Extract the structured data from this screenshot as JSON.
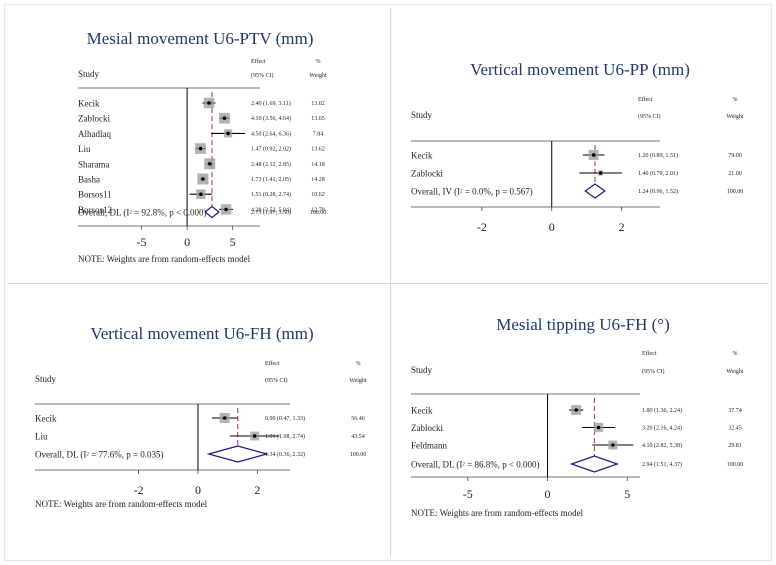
{
  "colors": {
    "title": "#1f3868",
    "text": "#222222",
    "marker": "#000000",
    "box": "#9a9a9a",
    "diamond": "#1a1a7a",
    "dashed": "#b03030",
    "panel_bg": "#ffffff"
  },
  "chart_data": [
    {
      "type": "forest",
      "title": "Mesial movement U6-PTV (mm)",
      "header": {
        "study": "Study",
        "effect": "Effect",
        "ci": "(95% CI)",
        "pct": "%",
        "weight": "Weight"
      },
      "studies": [
        {
          "name": "Kecik",
          "est": 2.4,
          "lo": 1.69,
          "hi": 3.11,
          "label": "2.40 (1.69, 3.11)",
          "weight": "13.02"
        },
        {
          "name": "Zablocki",
          "est": 4.1,
          "lo": 3.56,
          "hi": 4.64,
          "label": "4.10 (3.56, 4.64)",
          "weight": "13.65"
        },
        {
          "name": "Alhadlaq",
          "est": 4.5,
          "lo": 2.64,
          "hi": 6.36,
          "label": "4.50 (2.64, 6.36)",
          "weight": "7.84"
        },
        {
          "name": "Liu",
          "est": 1.47,
          "lo": 0.92,
          "hi": 2.02,
          "label": "1.47 (0.92, 2.02)",
          "weight": "13.62"
        },
        {
          "name": "Sharama",
          "est": 2.48,
          "lo": 2.12,
          "hi": 2.85,
          "label": "2.48 (2.12, 2.85)",
          "weight": "14.18"
        },
        {
          "name": "Basha",
          "est": 1.73,
          "lo": 1.41,
          "hi": 2.05,
          "label": "1.73 (1.41, 2.05)",
          "weight": "14.28"
        },
        {
          "name": "Borsos11",
          "est": 1.51,
          "lo": 0.28,
          "hi": 2.74,
          "label": "1.51 (0.28, 2.74)",
          "weight": "10.62"
        },
        {
          "name": "Borsos12",
          "est": 4.28,
          "lo": 3.52,
          "hi": 5.04,
          "label": "4.28 (3.52, 5.04)",
          "weight": "12.79"
        }
      ],
      "overall": {
        "name_pre": "Overall, DL (I",
        "sup": "2",
        "name_post": " = 92.8%, p < 0.000)",
        "est": 2.73,
        "lo": 1.97,
        "hi": 3.5,
        "label": "2.73 (1.97, 3.50)",
        "weight": "100.00"
      },
      "xlim": [
        -10,
        8
      ],
      "ticks": [
        -5,
        0,
        5
      ],
      "note": "NOTE: Weights are from random-effects model"
    },
    {
      "type": "forest",
      "title": "Vertical movement U6-PP (mm)",
      "header": {
        "study": "Study",
        "effect": "Effect",
        "ci": "(95% CI)",
        "pct": "%",
        "weight": "Weight"
      },
      "studies": [
        {
          "name": "Kecik",
          "est": 1.2,
          "lo": 0.89,
          "hi": 1.51,
          "label": "1.20 (0.89, 1.51)",
          "weight": "79.00"
        },
        {
          "name": "Zablocki",
          "est": 1.4,
          "lo": 0.79,
          "hi": 2.01,
          "label": "1.40 (0.79, 2.01)",
          "weight": "21.00"
        }
      ],
      "overall": {
        "name_pre": "Overall, IV (I",
        "sup": "2",
        "name_post": " = 0.0%, p = 0.567)",
        "est": 1.24,
        "lo": 0.96,
        "hi": 1.52,
        "label": "1.24 (0.96, 1.52)",
        "weight": "100.00"
      },
      "xlim": [
        -3.6,
        3.1
      ],
      "ticks": [
        -2,
        0,
        2
      ],
      "note": ""
    },
    {
      "type": "forest",
      "title": "Vertical movement U6-FH (mm)",
      "header": {
        "study": "Study",
        "effect": "Effect",
        "ci": "(95% CI)",
        "pct": "%",
        "weight": "Weight"
      },
      "studies": [
        {
          "name": "Kecik",
          "est": 0.9,
          "lo": 0.47,
          "hi": 1.33,
          "label": "0.90 (0.47, 1.33)",
          "weight": "56.46"
        },
        {
          "name": "Liu",
          "est": 1.91,
          "lo": 1.08,
          "hi": 2.74,
          "label": "1.91 (1.08, 2.74)",
          "weight": "43.54"
        }
      ],
      "overall": {
        "name_pre": "Overall, DL (I",
        "sup": "2",
        "name_post": " = 77.6%, p = 0.035)",
        "est": 1.34,
        "lo": 0.36,
        "hi": 2.32,
        "label": "1.34 (0.36, 2.32)",
        "weight": "100.00"
      },
      "xlim": [
        -3.3,
        3.1
      ],
      "ticks": [
        -2,
        0,
        2
      ],
      "note": "NOTE: Weights are from random-effects model"
    },
    {
      "type": "forest",
      "title": "Mesial tipping U6-FH (°)",
      "header": {
        "study": "Study",
        "effect": "Effect",
        "ci": "(95% CI)",
        "pct": "%",
        "weight": "Weight"
      },
      "studies": [
        {
          "name": "Kecik",
          "est": 1.8,
          "lo": 1.36,
          "hi": 2.24,
          "label": "1.80 (1.36, 2.24)",
          "weight": "37.74"
        },
        {
          "name": "Zablocki",
          "est": 3.2,
          "lo": 2.16,
          "hi": 4.24,
          "label": "3.20 (2.16, 4.24)",
          "weight": "32.45"
        },
        {
          "name": "Feldmann",
          "est": 4.1,
          "lo": 2.82,
          "hi": 5.38,
          "label": "4.10 (2.82, 5.38)",
          "weight": "29.81"
        }
      ],
      "overall": {
        "name_pre": "Overall, DL (I",
        "sup": "2",
        "name_post": " = 86.8%, p < 0.000)",
        "est": 2.94,
        "lo": 1.51,
        "hi": 4.37,
        "label": "2.94 (1.51, 4.37)",
        "weight": "100.00"
      },
      "xlim": [
        -8.5,
        5.8
      ],
      "ticks": [
        -5,
        0,
        5
      ],
      "note": "NOTE: Weights are from random-effects model"
    }
  ]
}
